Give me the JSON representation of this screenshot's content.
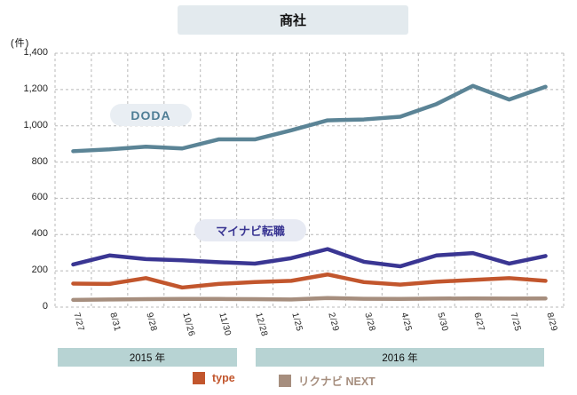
{
  "header": {
    "title": "商社"
  },
  "y_axis": {
    "unit_label": "(件)"
  },
  "series_pills": {
    "doda": "DODA",
    "mynavi": "マイナビ転職"
  },
  "x_bands": [
    {
      "label": "2015 年"
    },
    {
      "label": "2016 年"
    }
  ],
  "legend": [
    {
      "label": "type",
      "color": "#c2562d"
    },
    {
      "label": "リクナビ NEXT",
      "color": "#a68e7e"
    }
  ],
  "colors": {
    "doda_line": "#5b8496",
    "mynavi_line": "#3a3693",
    "type_line": "#c2562d",
    "rikunabi_line": "#a68e7e",
    "gridline": "#b8b8b8",
    "year_band_bg": "#b7d3d3",
    "title_band_bg": "#e3eaee"
  },
  "chart_data": {
    "type": "line",
    "title": "商社",
    "ylabel": "(件)",
    "ylim": [
      0,
      1400
    ],
    "y_tick_step": 200,
    "grid": true,
    "legend_position": "bottom",
    "categories": [
      "7/27",
      "8/31",
      "9/28",
      "10/26",
      "11/30",
      "12/28",
      "1/25",
      "2/29",
      "3/28",
      "4/25",
      "5/30",
      "6/27",
      "7/25",
      "8/29"
    ],
    "year_groups": [
      {
        "label": "2015 年",
        "from": "7/27",
        "to": "12/28"
      },
      {
        "label": "2016 年",
        "from": "1/25",
        "to": "8/29"
      }
    ],
    "series": [
      {
        "name": "DODA",
        "color": "#5b8496",
        "values": [
          860,
          870,
          885,
          875,
          925,
          925,
          975,
          1030,
          1035,
          1050,
          1120,
          1220,
          1145,
          1215
        ]
      },
      {
        "name": "マイナビ転職",
        "color": "#3a3693",
        "values": [
          235,
          285,
          265,
          258,
          248,
          240,
          270,
          320,
          250,
          225,
          285,
          298,
          240,
          282
        ]
      },
      {
        "name": "type",
        "color": "#c2562d",
        "values": [
          130,
          128,
          160,
          108,
          128,
          138,
          145,
          180,
          138,
          124,
          140,
          150,
          160,
          145
        ]
      },
      {
        "name": "リクナビ NEXT",
        "color": "#a68e7e",
        "values": [
          40,
          42,
          44,
          45,
          45,
          44,
          42,
          50,
          46,
          45,
          47,
          48,
          47,
          48
        ]
      }
    ]
  }
}
